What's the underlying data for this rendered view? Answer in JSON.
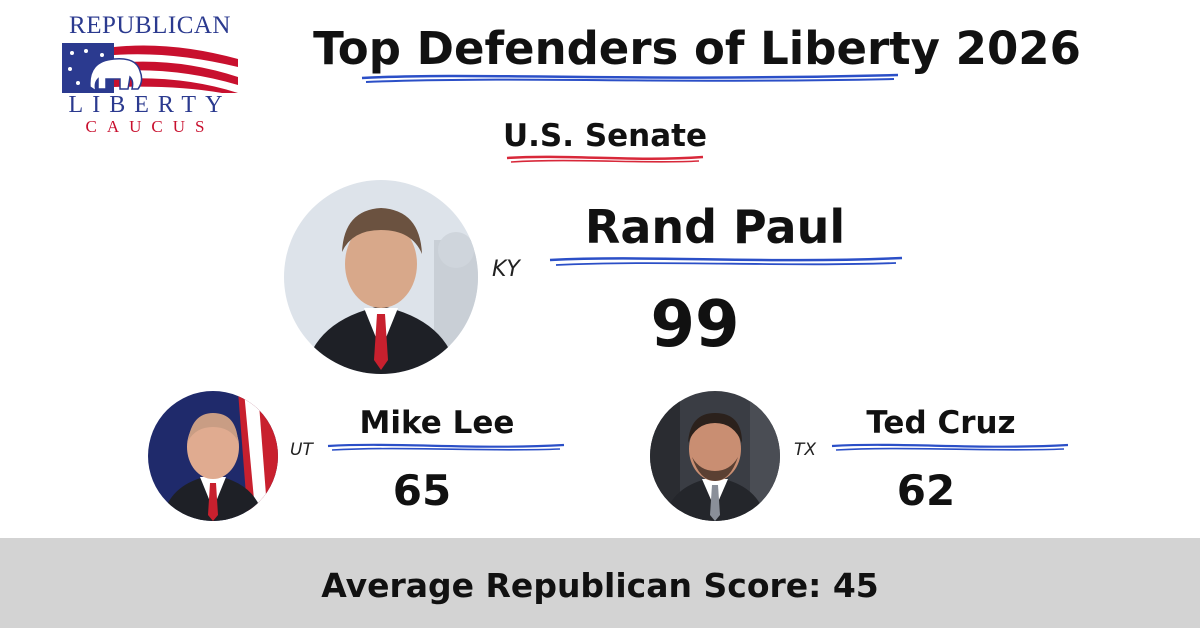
{
  "logo": {
    "line_top": "REPUBLICAN",
    "line_middle": "LIBERTY",
    "line_bottom": "CAUCUS"
  },
  "header": {
    "title": "Top Defenders of Liberty 2026",
    "subtitle": "U.S. Senate"
  },
  "featured": {
    "name": "Rand Paul",
    "state": "KY",
    "score": "99"
  },
  "runners_up": [
    {
      "name": "Mike Lee",
      "state": "UT",
      "score": "65"
    },
    {
      "name": "Ted Cruz",
      "state": "TX",
      "score": "62"
    }
  ],
  "footer": {
    "text": "Average Republican Score: 45"
  },
  "colors": {
    "logo_blue": "#2b3a8f",
    "logo_red": "#c8102e",
    "scribble_blue": "#2b4fc7",
    "scribble_red": "#d8283a",
    "footer_bg": "#d3d3d3"
  }
}
